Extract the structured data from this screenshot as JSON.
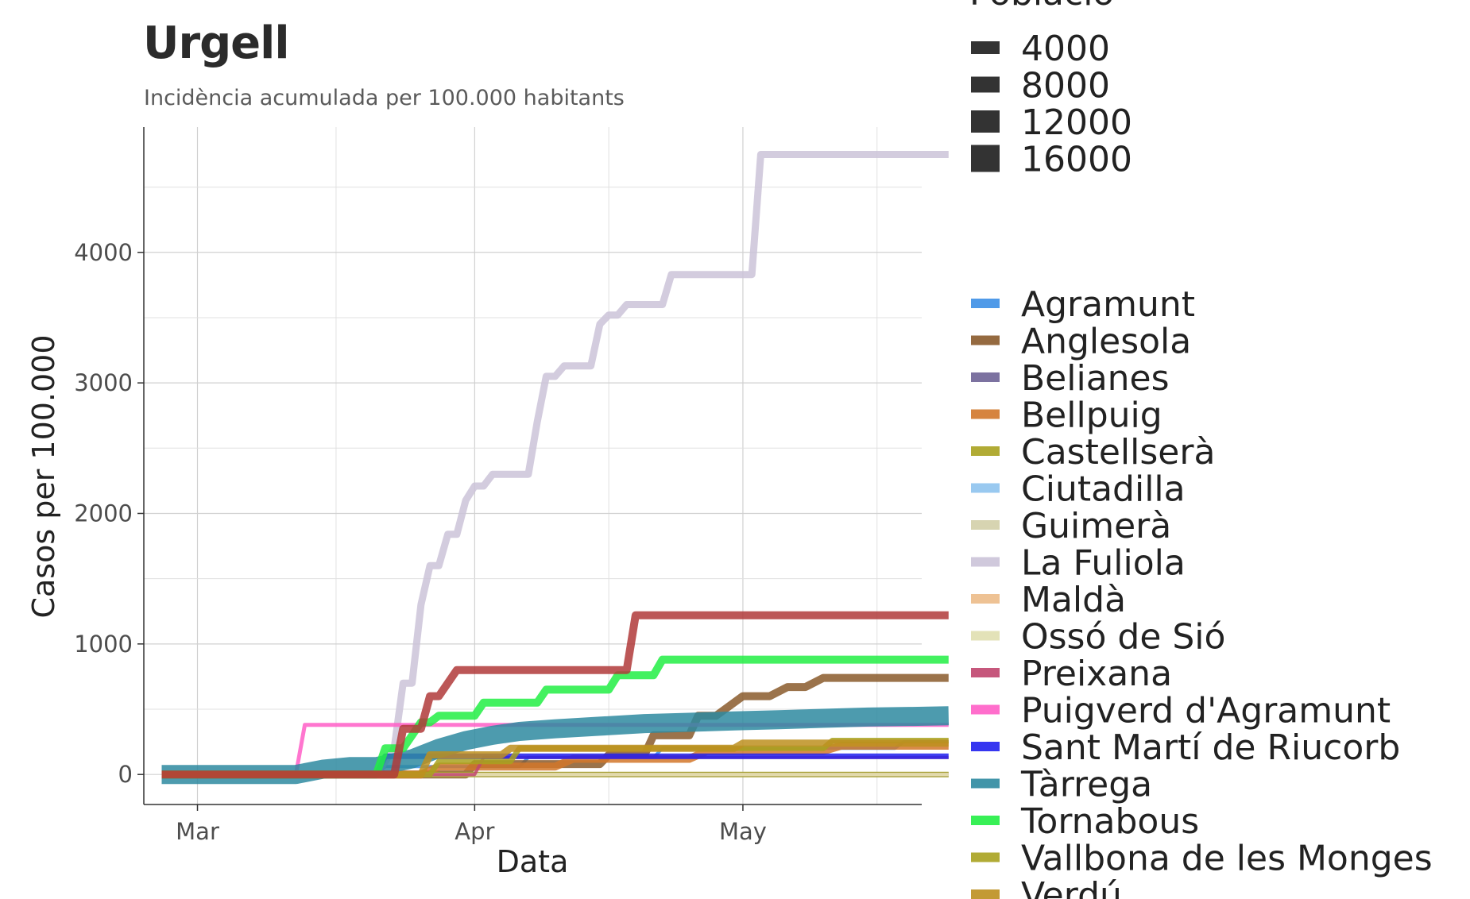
{
  "title": "Urgell",
  "subtitle": "Incidència acumulada per 100.000 habitants",
  "chart_data": {
    "type": "line",
    "title": "Urgell",
    "subtitle": "Incidència acumulada per 100.000 habitants",
    "xlabel": "Data",
    "ylabel": "Casos per 100.000",
    "x_ticks": [
      "Mar",
      "Apr",
      "May"
    ],
    "y_ticks": [
      0,
      1000,
      2000,
      3000,
      4000
    ],
    "xlim": [
      -6,
      81
    ],
    "ylim": [
      -230,
      4960
    ],
    "grid": true,
    "size_legend": {
      "title": "Població",
      "values": [
        4000,
        8000,
        12000,
        16000
      ]
    },
    "series": [
      {
        "name": "Agramunt",
        "color": "#3c8fe6",
        "width": 4,
        "points": [
          [
            -4,
            0
          ],
          [
            20,
            0
          ],
          [
            21,
            60
          ],
          [
            36,
            60
          ],
          [
            37,
            130
          ],
          [
            51,
            130
          ],
          [
            52,
            200
          ],
          [
            78,
            200
          ],
          [
            79,
            250
          ],
          [
            84,
            250
          ]
        ]
      },
      {
        "name": "Anglesola",
        "color": "#8a5a2b",
        "width": 10,
        "points": [
          [
            -4,
            0
          ],
          [
            30,
            0
          ],
          [
            31,
            80
          ],
          [
            45,
            80
          ],
          [
            46,
            150
          ],
          [
            50,
            150
          ],
          [
            51,
            300
          ],
          [
            55,
            300
          ],
          [
            56,
            450
          ],
          [
            58,
            450
          ],
          [
            61,
            600
          ],
          [
            64,
            600
          ],
          [
            66,
            670
          ],
          [
            68,
            670
          ],
          [
            70,
            740
          ],
          [
            84,
            740
          ]
        ]
      },
      {
        "name": "Belianes",
        "color": "#6e6396",
        "width": 6,
        "points": [
          [
            -4,
            0
          ],
          [
            84,
            0
          ]
        ]
      },
      {
        "name": "Bellpuig",
        "color": "#d2772a",
        "width": 10,
        "points": [
          [
            -4,
            0
          ],
          [
            25,
            0
          ],
          [
            27,
            60
          ],
          [
            40,
            60
          ],
          [
            42,
            120
          ],
          [
            55,
            120
          ],
          [
            57,
            180
          ],
          [
            70,
            180
          ],
          [
            72,
            220
          ],
          [
            84,
            220
          ]
        ]
      },
      {
        "name": "Castellserà",
        "color": "#a8a21f",
        "width": 7,
        "points": [
          [
            -4,
            0
          ],
          [
            84,
            0
          ]
        ]
      },
      {
        "name": "Ciutadilla",
        "color": "#8ec3ee",
        "width": 4,
        "points": [
          [
            -4,
            0
          ],
          [
            84,
            0
          ]
        ]
      },
      {
        "name": "Guimerà",
        "color": "#d3cfa8",
        "width": 4,
        "points": [
          [
            -4,
            0
          ],
          [
            84,
            0
          ]
        ]
      },
      {
        "name": "La Fuliola",
        "color": "#cbc3d8",
        "width": 9,
        "points": [
          [
            -4,
            0
          ],
          [
            20,
            0
          ],
          [
            22,
            200
          ],
          [
            23,
            700
          ],
          [
            24,
            700
          ],
          [
            25,
            1300
          ],
          [
            26,
            1600
          ],
          [
            27,
            1600
          ],
          [
            28,
            1840
          ],
          [
            29,
            1840
          ],
          [
            30,
            2100
          ],
          [
            31,
            2210
          ],
          [
            32,
            2210
          ],
          [
            33,
            2300
          ],
          [
            37,
            2300
          ],
          [
            38,
            2700
          ],
          [
            39,
            3050
          ],
          [
            40,
            3050
          ],
          [
            41,
            3130
          ],
          [
            44,
            3130
          ],
          [
            45,
            3450
          ],
          [
            46,
            3520
          ],
          [
            47,
            3520
          ],
          [
            48,
            3600
          ],
          [
            52,
            3600
          ],
          [
            53,
            3830
          ],
          [
            62,
            3830
          ],
          [
            63,
            4750
          ],
          [
            84,
            4750
          ]
        ]
      },
      {
        "name": "Maldà",
        "color": "#ecbb88",
        "width": 4,
        "points": [
          [
            -4,
            0
          ],
          [
            84,
            0
          ]
        ]
      },
      {
        "name": "Ossó de Sió",
        "color": "#e0dfb0",
        "width": 4,
        "points": [
          [
            -4,
            0
          ],
          [
            84,
            0
          ]
        ]
      },
      {
        "name": "Preixana",
        "color": "#c0456e",
        "width": 4,
        "points": [
          [
            -4,
            0
          ],
          [
            31,
            0
          ],
          [
            32,
            130
          ],
          [
            84,
            130
          ]
        ]
      },
      {
        "name": "Puigverd d'Agramunt",
        "color": "#ff5ec7",
        "width": 5,
        "points": [
          [
            -4,
            0
          ],
          [
            11,
            0
          ],
          [
            12,
            380
          ],
          [
            58,
            380
          ],
          [
            59,
            380
          ],
          [
            84,
            380
          ]
        ]
      },
      {
        "name": "Sant Martí de Riucorb",
        "color": "#2020ee",
        "width": 7,
        "points": [
          [
            -4,
            0
          ],
          [
            20,
            0
          ],
          [
            21,
            140
          ],
          [
            84,
            140
          ]
        ]
      },
      {
        "name": "Tàrrega",
        "color": "#2e8aa0",
        "width": 24,
        "points": [
          [
            -4,
            0
          ],
          [
            11,
            0
          ],
          [
            14,
            40
          ],
          [
            17,
            60
          ],
          [
            20,
            60
          ],
          [
            24,
            120
          ],
          [
            27,
            200
          ],
          [
            30,
            260
          ],
          [
            33,
            300
          ],
          [
            36,
            330
          ],
          [
            40,
            350
          ],
          [
            45,
            370
          ],
          [
            50,
            390
          ],
          [
            55,
            400
          ],
          [
            60,
            410
          ],
          [
            65,
            420
          ],
          [
            70,
            430
          ],
          [
            75,
            440
          ],
          [
            80,
            445
          ],
          [
            84,
            450
          ]
        ]
      },
      {
        "name": "Tornabous",
        "color": "#22ee44",
        "width": 10,
        "points": [
          [
            -4,
            0
          ],
          [
            20,
            0
          ],
          [
            21,
            200
          ],
          [
            23,
            200
          ],
          [
            24,
            300
          ],
          [
            25,
            400
          ],
          [
            26,
            400
          ],
          [
            27,
            450
          ],
          [
            31,
            450
          ],
          [
            32,
            550
          ],
          [
            38,
            550
          ],
          [
            39,
            650
          ],
          [
            42,
            650
          ],
          [
            43,
            650
          ],
          [
            46,
            650
          ],
          [
            47,
            760
          ],
          [
            51,
            760
          ],
          [
            52,
            880
          ],
          [
            84,
            880
          ]
        ]
      },
      {
        "name": "Vallbona de les Monges",
        "color": "#a8a21f",
        "width": 7,
        "points": [
          [
            -4,
            0
          ],
          [
            26,
            0
          ],
          [
            27,
            100
          ],
          [
            35,
            100
          ],
          [
            36,
            200
          ],
          [
            70,
            200
          ],
          [
            71,
            260
          ],
          [
            84,
            260
          ]
        ]
      },
      {
        "name": "Verdú",
        "color": "#bd8f1f",
        "width": 9,
        "points": [
          [
            -4,
            0
          ],
          [
            25,
            0
          ],
          [
            26,
            150
          ],
          [
            34,
            150
          ],
          [
            35,
            200
          ],
          [
            60,
            200
          ],
          [
            61,
            240
          ],
          [
            84,
            240
          ]
        ]
      },
      {
        "name": "",
        "color": "#b03a3a",
        "width": 10,
        "points": [
          [
            -4,
            0
          ],
          [
            22,
            0
          ],
          [
            23,
            350
          ],
          [
            25,
            350
          ],
          [
            26,
            600
          ],
          [
            27,
            600
          ],
          [
            29,
            800
          ],
          [
            48,
            800
          ],
          [
            49,
            1220
          ],
          [
            84,
            1220
          ]
        ]
      }
    ]
  }
}
